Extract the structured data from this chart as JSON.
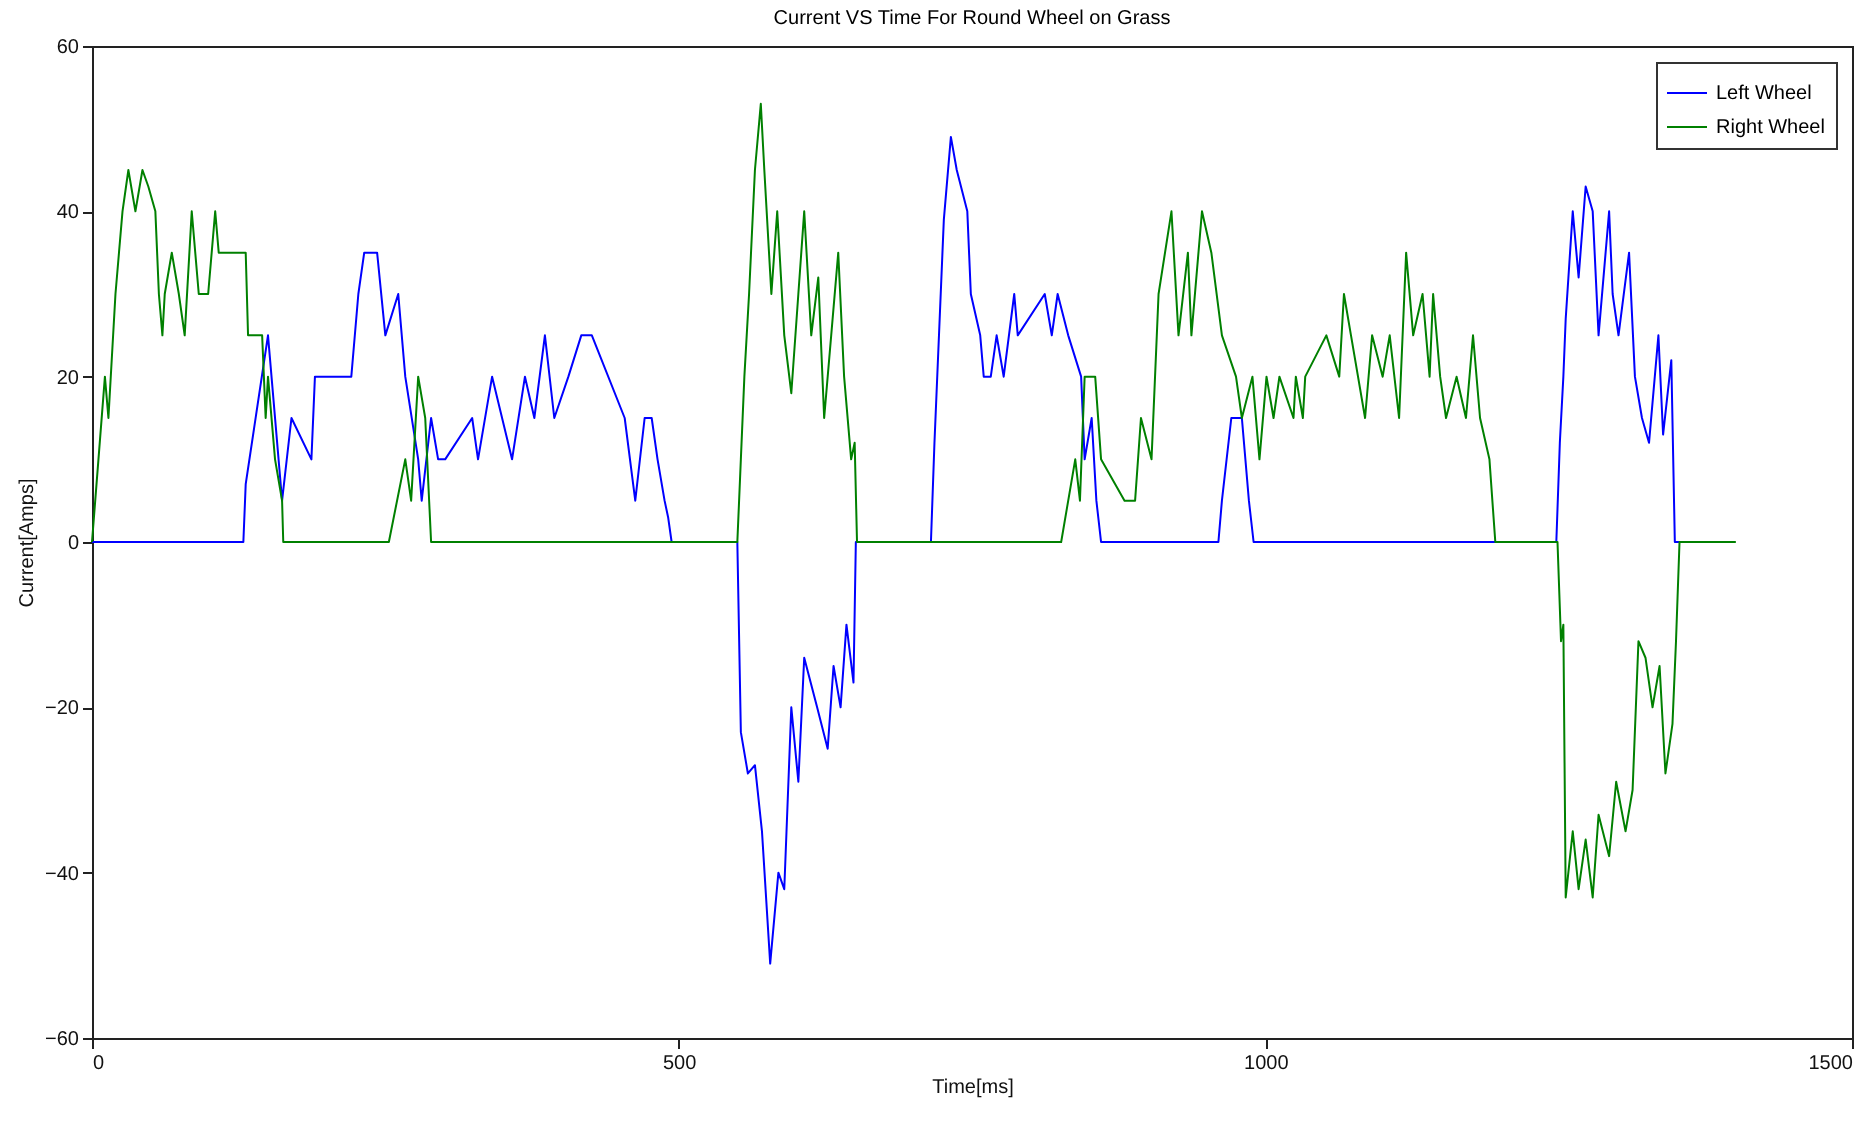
{
  "chart_data": {
    "type": "line",
    "title": "Current VS Time For Round Wheel on Grass",
    "xlabel": "Time[ms]",
    "ylabel": "Current[Amps]",
    "xlim": [
      0,
      1500
    ],
    "xticks": [
      0,
      500,
      1000,
      1500
    ],
    "ylim": [
      -60,
      60
    ],
    "yticks": [
      -60,
      -40,
      -20,
      0,
      20,
      40,
      60
    ],
    "grid": false,
    "legend": "top right",
    "series": [
      {
        "name": "Left Wheel",
        "color": "#0000ff",
        "x": [
          0,
          129,
          131,
          150,
          162,
          170,
          187,
          190,
          221,
          227,
          232,
          243,
          250,
          261,
          267,
          278,
          281,
          289,
          295,
          301,
          324,
          329,
          341,
          358,
          369,
          377,
          386,
          394,
          406,
          417,
          426,
          454,
          463,
          471,
          477,
          482,
          488,
          491,
          494,
          550,
          553,
          559,
          565,
          571,
          578,
          585,
          590,
          596,
          602,
          607,
          618,
          627,
          632,
          638,
          643,
          649,
          651,
          715,
          718,
          726,
          732,
          737,
          746,
          749,
          757,
          760,
          766,
          771,
          777,
          786,
          789,
          812,
          818,
          823,
          832,
          843,
          846,
          852,
          856,
          860,
          960,
          963,
          971,
          980,
          986,
          990,
          1248,
          1251,
          1254,
          1256,
          1262,
          1267,
          1273,
          1279,
          1284,
          1293,
          1296,
          1301,
          1310,
          1315,
          1321,
          1327,
          1335,
          1339,
          1346,
          1349,
          1400
        ],
        "values": [
          0,
          0,
          7,
          25,
          5,
          15,
          10,
          20,
          20,
          30,
          35,
          35,
          25,
          30,
          20,
          10,
          5,
          15,
          10,
          10,
          15,
          10,
          20,
          10,
          20,
          15,
          25,
          15,
          20,
          25,
          25,
          15,
          5,
          15,
          15,
          10,
          5,
          3,
          0,
          0,
          -23,
          -28,
          -27,
          -35,
          -51,
          -40,
          -42,
          -20,
          -29,
          -14,
          -20,
          -25,
          -15,
          -20,
          -10,
          -17,
          0,
          0,
          12,
          39,
          49,
          45,
          40,
          30,
          25,
          20,
          20,
          25,
          20,
          30,
          25,
          30,
          25,
          30,
          25,
          20,
          10,
          15,
          5,
          0,
          0,
          5,
          15,
          15,
          5,
          0,
          0,
          12,
          20,
          27,
          40,
          32,
          43,
          40,
          25,
          40,
          30,
          25,
          35,
          20,
          15,
          12,
          25,
          13,
          22,
          0,
          0
        ]
      },
      {
        "name": "Right Wheel",
        "color": "#008000",
        "x": [
          0,
          11,
          14,
          20,
          23,
          26,
          31,
          37,
          43,
          48,
          54,
          57,
          60,
          62,
          68,
          74,
          79,
          85,
          91,
          99,
          105,
          108,
          131,
          133,
          145,
          148,
          150,
          156,
          162,
          163,
          253,
          267,
          272,
          278,
          284,
          289,
          550,
          553,
          556,
          560,
          565,
          570,
          573,
          579,
          584,
          590,
          596,
          602,
          607,
          613,
          619,
          624,
          630,
          636,
          641,
          647,
          650,
          652,
          826,
          838,
          842,
          846,
          855,
          860,
          880,
          889,
          894,
          903,
          909,
          920,
          926,
          934,
          937,
          946,
          954,
          963,
          975,
          980,
          989,
          995,
          1001,
          1007,
          1012,
          1024,
          1026,
          1032,
          1034,
          1052,
          1063,
          1067,
          1073,
          1085,
          1091,
          1100,
          1106,
          1114,
          1120,
          1126,
          1134,
          1140,
          1143,
          1149,
          1154,
          1163,
          1171,
          1177,
          1183,
          1191,
          1196,
          1249,
          1252,
          1254,
          1256,
          1262,
          1267,
          1273,
          1279,
          1284,
          1293,
          1299,
          1307,
          1313,
          1318,
          1324,
          1330,
          1336,
          1341,
          1347,
          1350,
          1353,
          1401
        ],
        "values": [
          0,
          20,
          15,
          30,
          35,
          40,
          45,
          40,
          45,
          43,
          40,
          30,
          25,
          30,
          35,
          30,
          25,
          40,
          30,
          30,
          40,
          35,
          35,
          25,
          25,
          15,
          20,
          10,
          5,
          0,
          0,
          10,
          5,
          20,
          15,
          0,
          0,
          10,
          20,
          30,
          45,
          53,
          45,
          30,
          40,
          25,
          18,
          30,
          40,
          25,
          32,
          15,
          25,
          35,
          20,
          10,
          12,
          0,
          0,
          10,
          5,
          20,
          20,
          10,
          5,
          5,
          15,
          10,
          30,
          40,
          25,
          35,
          25,
          40,
          35,
          25,
          20,
          15,
          20,
          10,
          20,
          15,
          20,
          15,
          20,
          15,
          20,
          25,
          20,
          30,
          25,
          15,
          25,
          20,
          25,
          15,
          35,
          25,
          30,
          20,
          30,
          20,
          15,
          20,
          15,
          25,
          15,
          10,
          0,
          0,
          -12,
          -10,
          -43,
          -35,
          -42,
          -36,
          -43,
          -33,
          -38,
          -29,
          -35,
          -30,
          -12,
          -14,
          -20,
          -15,
          -28,
          -22,
          -12,
          0,
          0
        ]
      }
    ]
  }
}
